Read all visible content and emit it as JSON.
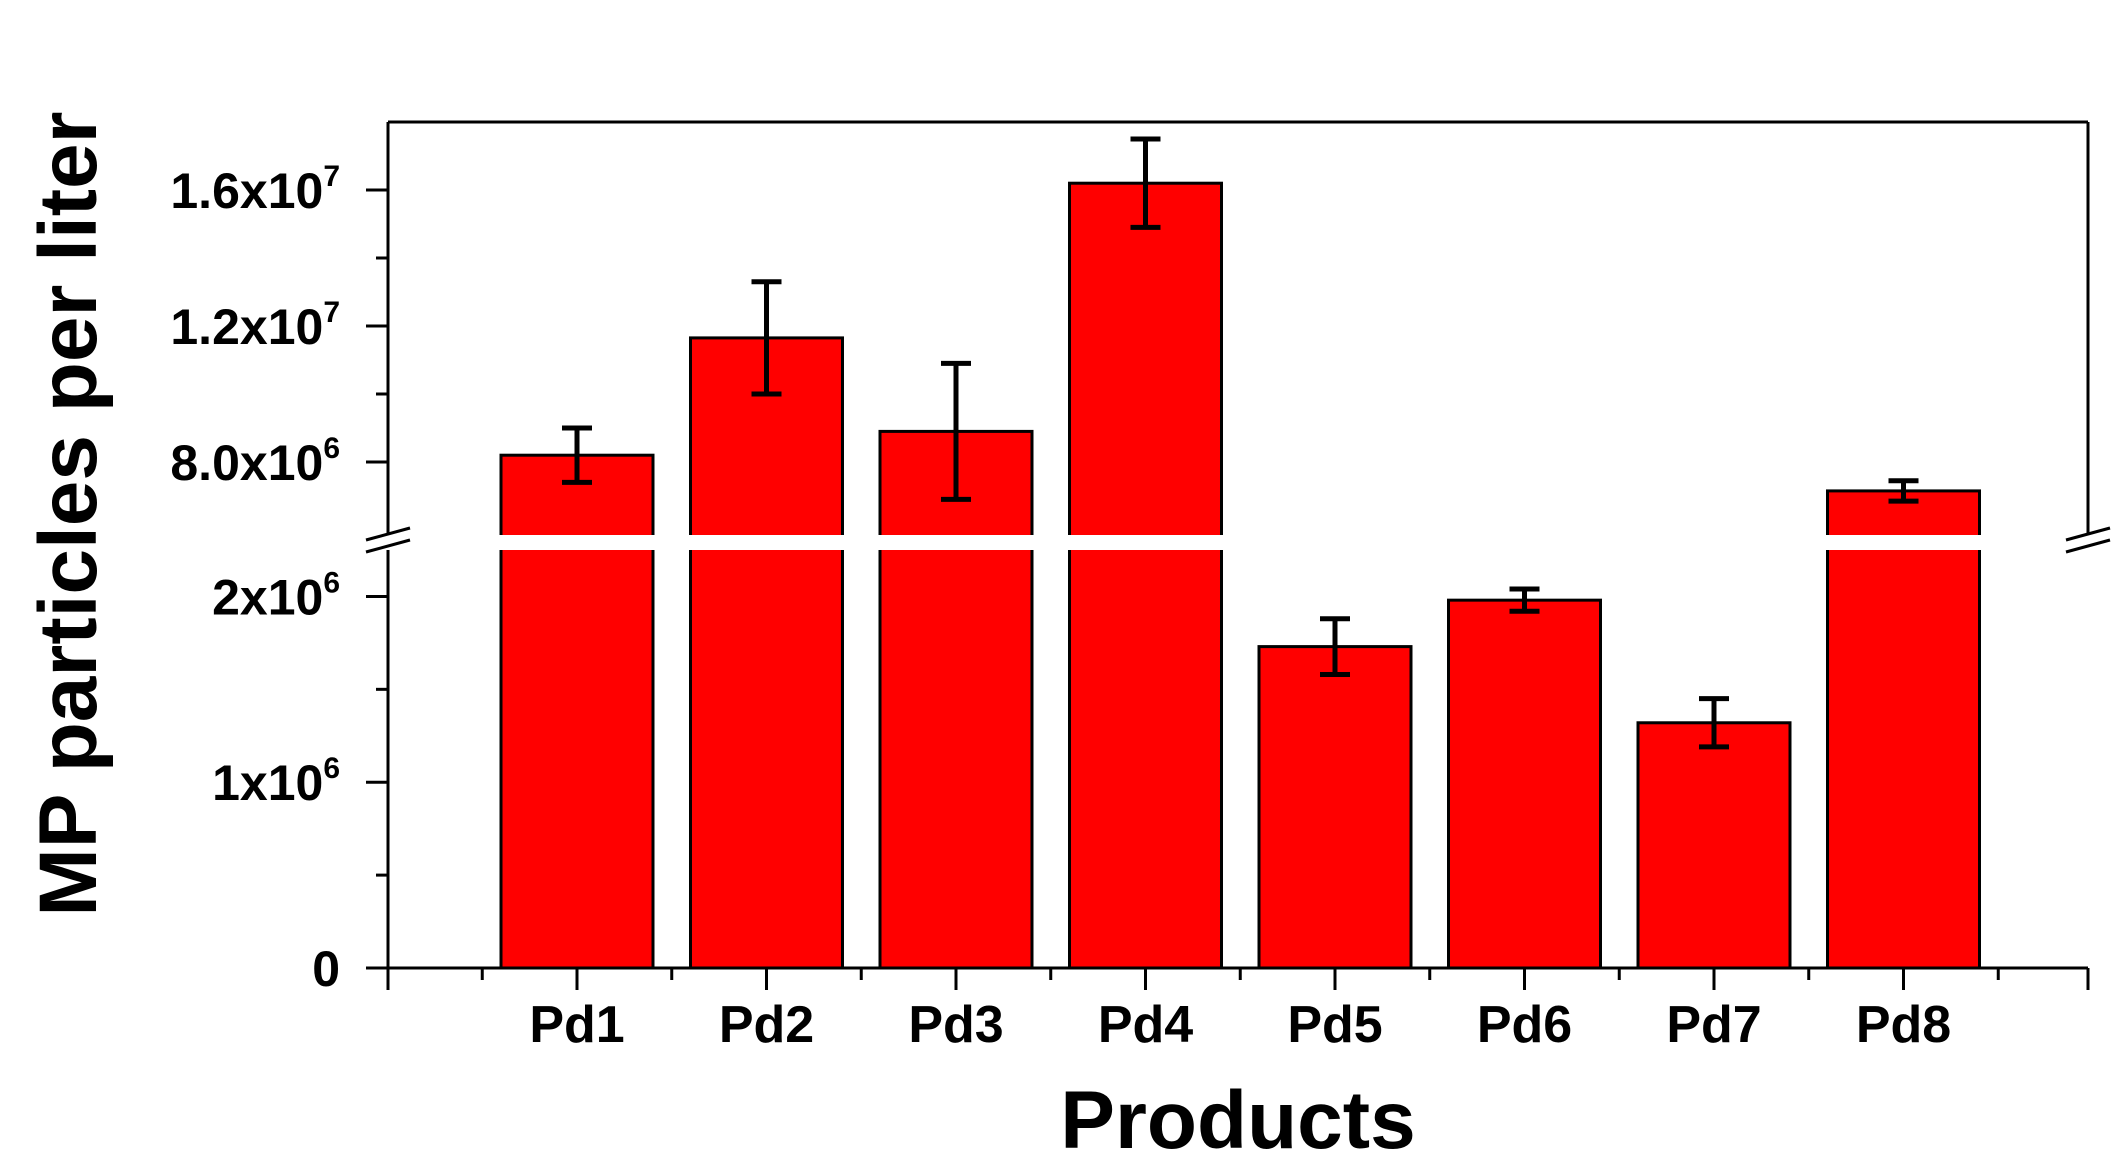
{
  "chart_data": {
    "type": "bar",
    "xlabel": "Products",
    "ylabel": "MP particles per liter",
    "categories": [
      "Pd1",
      "Pd2",
      "Pd3",
      "Pd4",
      "Pd5",
      "Pd6",
      "Pd7",
      "Pd8"
    ],
    "values": [
      8200000,
      11650000,
      8900000,
      16200000,
      1730000,
      1980000,
      1320000,
      7150000
    ],
    "errors": [
      800000,
      1650000,
      2000000,
      1300000,
      150000,
      60000,
      130000,
      300000
    ],
    "y_axis_break": true,
    "lower_segment": {
      "ylim": [
        0,
        2250000
      ]
    },
    "upper_segment": {
      "ylim": [
        6000000,
        18000000
      ]
    },
    "yticks_lower": [
      {
        "value": 0,
        "base": "0",
        "exp": ""
      },
      {
        "value": 1000000,
        "base": "1x10",
        "exp": "6"
      },
      {
        "value": 2000000,
        "base": "2x10",
        "exp": "6"
      }
    ],
    "yticks_upper": [
      {
        "value": 8000000,
        "base": "8.0x10",
        "exp": "6"
      },
      {
        "value": 12000000,
        "base": "1.2x10",
        "exp": "7"
      },
      {
        "value": 16000000,
        "base": "1.6x10",
        "exp": "7"
      }
    ],
    "bar_color": "#ff0000",
    "grid": false,
    "legend": "none"
  }
}
